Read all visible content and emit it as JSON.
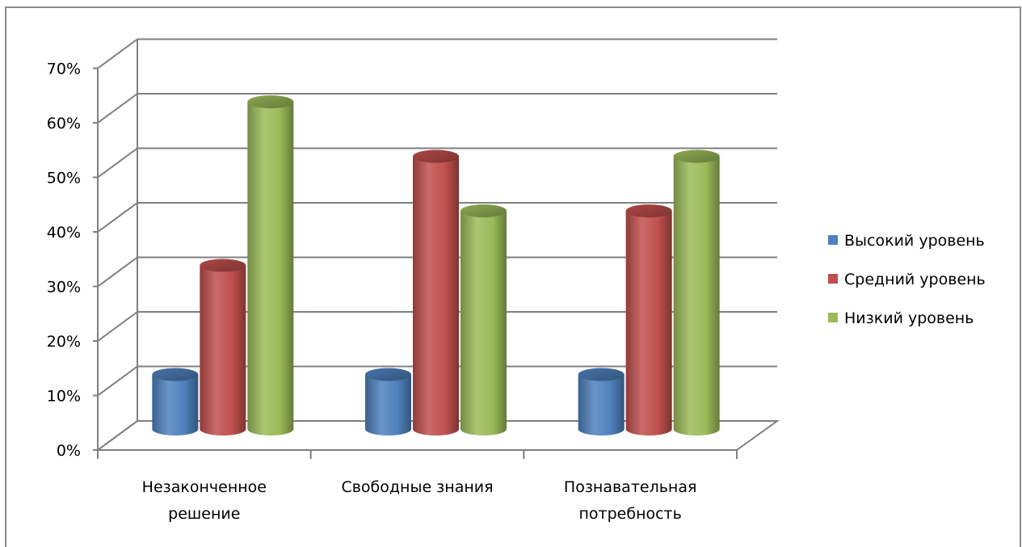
{
  "chart_data": {
    "type": "bar",
    "categories": [
      [
        "Незаконченное",
        "решение"
      ],
      [
        "Свободные знания"
      ],
      [
        "Познавательная",
        "потребность"
      ]
    ],
    "series": [
      {
        "name": "Высокий уровень",
        "values": [
          10,
          10,
          10
        ],
        "color": "#4f81bd"
      },
      {
        "name": "Средний уровень",
        "values": [
          30,
          50,
          40
        ],
        "color": "#c0504d"
      },
      {
        "name": "Низкий уровень",
        "values": [
          60,
          40,
          50
        ],
        "color": "#9bbb59"
      }
    ],
    "y_ticks": [
      "0%",
      "10%",
      "20%",
      "30%",
      "40%",
      "50%",
      "60%",
      "70%"
    ],
    "ylim": [
      0,
      70
    ],
    "grid": true,
    "legend_position": "right",
    "style": "3d-cylinder"
  }
}
